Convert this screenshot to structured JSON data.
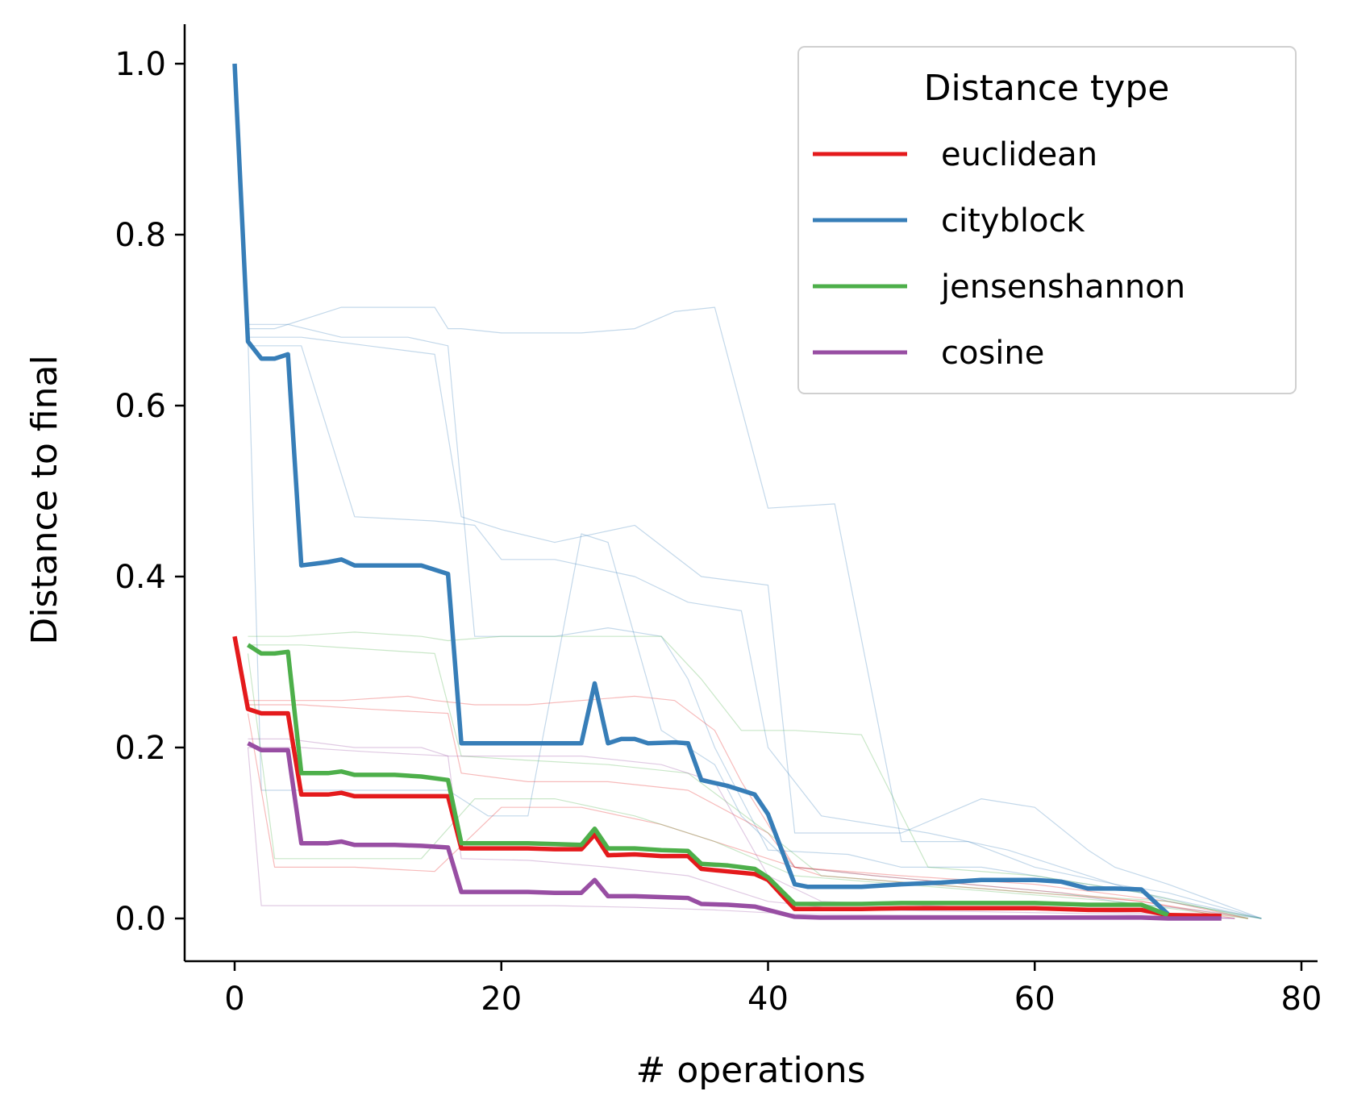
{
  "chart_data": {
    "type": "line",
    "title": "",
    "xlabel": "# operations",
    "ylabel": "Distance to final",
    "xlim": [
      -4,
      81
    ],
    "ylim": [
      -0.05,
      1.05
    ],
    "xticks": [
      0,
      20,
      40,
      60,
      80
    ],
    "yticks": [
      0.0,
      0.2,
      0.4,
      0.6,
      0.8,
      1.0
    ],
    "xtick_labels": [
      "0",
      "20",
      "40",
      "60",
      "80"
    ],
    "ytick_labels": [
      "0.0",
      "0.2",
      "0.4",
      "0.6",
      "0.8",
      "1.0"
    ],
    "grid": false,
    "legend": {
      "title": "Distance type",
      "placement": "top-right",
      "entries": [
        "euclidean",
        "cityblock",
        "jensenshannon",
        "cosine"
      ]
    },
    "colors": {
      "euclidean": "#e41a1c",
      "cityblock": "#377eb8",
      "jensenshannon": "#4daf4a",
      "cosine": "#984ea3"
    },
    "series": [
      {
        "name": "euclidean",
        "x": [
          0,
          1,
          2,
          3,
          4,
          5,
          6,
          7,
          8,
          9,
          10,
          12,
          14,
          16,
          17,
          18,
          20,
          22,
          24,
          26,
          27,
          28,
          30,
          32,
          34,
          35,
          37,
          39,
          40,
          42,
          44,
          47,
          50,
          55,
          60,
          64,
          68,
          70,
          74
        ],
        "y": [
          0.33,
          0.245,
          0.24,
          0.24,
          0.24,
          0.145,
          0.145,
          0.145,
          0.147,
          0.143,
          0.143,
          0.143,
          0.143,
          0.143,
          0.082,
          0.082,
          0.082,
          0.082,
          0.081,
          0.081,
          0.098,
          0.074,
          0.075,
          0.073,
          0.073,
          0.058,
          0.055,
          0.052,
          0.045,
          0.011,
          0.011,
          0.011,
          0.012,
          0.012,
          0.012,
          0.01,
          0.01,
          0.004,
          0.003
        ]
      },
      {
        "name": "cityblock",
        "x": [
          0,
          1,
          2,
          3,
          4,
          5,
          6,
          7,
          8,
          9,
          10,
          12,
          14,
          16,
          17,
          18,
          20,
          22,
          24,
          26,
          27,
          28,
          29,
          30,
          31,
          33,
          34,
          35,
          37,
          39,
          40,
          42,
          43,
          45,
          47,
          50,
          53,
          56,
          60,
          62,
          64,
          66,
          68,
          70
        ],
        "y": [
          1.0,
          0.675,
          0.655,
          0.655,
          0.66,
          0.413,
          0.415,
          0.417,
          0.42,
          0.413,
          0.413,
          0.413,
          0.413,
          0.403,
          0.205,
          0.205,
          0.205,
          0.205,
          0.205,
          0.205,
          0.275,
          0.205,
          0.21,
          0.21,
          0.205,
          0.206,
          0.205,
          0.162,
          0.155,
          0.145,
          0.122,
          0.04,
          0.037,
          0.037,
          0.037,
          0.04,
          0.042,
          0.045,
          0.045,
          0.043,
          0.035,
          0.035,
          0.034,
          0.005
        ]
      },
      {
        "name": "jensenshannon",
        "x": [
          1,
          2,
          3,
          4,
          5,
          6,
          7,
          8,
          9,
          10,
          12,
          14,
          16,
          17,
          18,
          20,
          22,
          24,
          26,
          27,
          28,
          30,
          32,
          34,
          35,
          37,
          39,
          40,
          42,
          44,
          47,
          50,
          55,
          60,
          64,
          68,
          70
        ],
        "y": [
          0.32,
          0.31,
          0.31,
          0.312,
          0.17,
          0.17,
          0.17,
          0.172,
          0.168,
          0.168,
          0.168,
          0.166,
          0.162,
          0.088,
          0.088,
          0.088,
          0.088,
          0.087,
          0.086,
          0.105,
          0.082,
          0.082,
          0.08,
          0.079,
          0.064,
          0.062,
          0.058,
          0.048,
          0.017,
          0.017,
          0.017,
          0.018,
          0.018,
          0.018,
          0.016,
          0.016,
          0.004
        ]
      },
      {
        "name": "cosine",
        "x": [
          1,
          2,
          3,
          4,
          5,
          6,
          7,
          8,
          9,
          10,
          12,
          14,
          16,
          17,
          18,
          20,
          22,
          24,
          26,
          27,
          28,
          30,
          32,
          34,
          35,
          37,
          39,
          40,
          42,
          44,
          50,
          55,
          60,
          64,
          68,
          70,
          74
        ],
        "y": [
          0.205,
          0.197,
          0.197,
          0.197,
          0.088,
          0.088,
          0.088,
          0.09,
          0.086,
          0.086,
          0.086,
          0.085,
          0.083,
          0.031,
          0.031,
          0.031,
          0.031,
          0.03,
          0.03,
          0.045,
          0.026,
          0.026,
          0.025,
          0.024,
          0.017,
          0.016,
          0.014,
          0.01,
          0.002,
          0.001,
          0.001,
          0.001,
          0.001,
          0.001,
          0.001,
          0.0,
          0.0
        ]
      }
    ],
    "background_series": [
      {
        "series": "cityblock",
        "x": [
          1,
          3,
          5,
          8,
          14,
          15,
          16,
          17,
          20,
          26,
          30,
          33,
          36,
          40,
          45,
          50,
          55,
          60,
          66,
          70,
          77
        ],
        "y": [
          0.69,
          0.69,
          0.7,
          0.715,
          0.715,
          0.715,
          0.69,
          0.69,
          0.685,
          0.685,
          0.69,
          0.71,
          0.715,
          0.48,
          0.485,
          0.09,
          0.09,
          0.06,
          0.04,
          0.03,
          0.0
        ]
      },
      {
        "series": "cityblock",
        "x": [
          1,
          5,
          10,
          15,
          17,
          18,
          20,
          24,
          30,
          35,
          40,
          42,
          50,
          56,
          60,
          64,
          66,
          70,
          77
        ],
        "y": [
          0.68,
          0.68,
          0.67,
          0.66,
          0.47,
          0.465,
          0.455,
          0.44,
          0.46,
          0.4,
          0.39,
          0.1,
          0.1,
          0.14,
          0.13,
          0.08,
          0.06,
          0.04,
          0.0
        ]
      },
      {
        "series": "cityblock",
        "x": [
          1,
          4,
          8,
          13,
          16,
          18,
          24,
          28,
          32,
          34,
          36,
          40,
          46,
          50,
          56,
          60,
          68,
          77
        ],
        "y": [
          0.695,
          0.695,
          0.68,
          0.68,
          0.67,
          0.33,
          0.33,
          0.34,
          0.33,
          0.28,
          0.2,
          0.08,
          0.075,
          0.06,
          0.06,
          0.05,
          0.03,
          0.0
        ]
      },
      {
        "series": "cityblock",
        "x": [
          1,
          5,
          9,
          15,
          18,
          20,
          24,
          30,
          34,
          38,
          40,
          44,
          52,
          58,
          62,
          66,
          70,
          77
        ],
        "y": [
          0.67,
          0.67,
          0.47,
          0.465,
          0.46,
          0.42,
          0.42,
          0.4,
          0.37,
          0.36,
          0.2,
          0.12,
          0.1,
          0.08,
          0.06,
          0.04,
          0.02,
          0.0
        ]
      },
      {
        "series": "cityblock",
        "x": [
          1,
          2,
          8,
          12,
          16,
          19,
          22,
          26,
          28,
          32,
          36,
          38,
          42,
          48,
          55,
          62,
          66,
          72,
          77
        ],
        "y": [
          0.68,
          0.15,
          0.15,
          0.15,
          0.15,
          0.12,
          0.12,
          0.45,
          0.44,
          0.22,
          0.18,
          0.12,
          0.06,
          0.05,
          0.04,
          0.03,
          0.02,
          0.01,
          0.0
        ]
      },
      {
        "series": "euclidean",
        "x": [
          1,
          4,
          8,
          13,
          15,
          18,
          22,
          26,
          30,
          33,
          36,
          38,
          42,
          48,
          55,
          62,
          68,
          75
        ],
        "y": [
          0.255,
          0.255,
          0.255,
          0.26,
          0.255,
          0.25,
          0.25,
          0.255,
          0.26,
          0.255,
          0.22,
          0.16,
          0.06,
          0.05,
          0.04,
          0.03,
          0.02,
          0.0
        ]
      },
      {
        "series": "euclidean",
        "x": [
          1,
          5,
          10,
          16,
          17,
          22,
          28,
          34,
          40,
          42,
          50,
          60,
          70,
          76
        ],
        "y": [
          0.25,
          0.25,
          0.245,
          0.24,
          0.17,
          0.16,
          0.16,
          0.15,
          0.1,
          0.06,
          0.05,
          0.04,
          0.02,
          0.0
        ]
      },
      {
        "series": "euclidean",
        "x": [
          1,
          3,
          9,
          15,
          20,
          26,
          32,
          38,
          44,
          52,
          60,
          68,
          76
        ],
        "y": [
          0.24,
          0.06,
          0.06,
          0.055,
          0.13,
          0.13,
          0.11,
          0.08,
          0.05,
          0.04,
          0.03,
          0.02,
          0.0
        ]
      },
      {
        "series": "jensenshannon",
        "x": [
          1,
          4,
          9,
          14,
          16,
          20,
          26,
          32,
          35,
          38,
          42,
          47,
          52,
          60,
          68,
          76
        ],
        "y": [
          0.33,
          0.33,
          0.335,
          0.33,
          0.325,
          0.33,
          0.33,
          0.33,
          0.28,
          0.22,
          0.22,
          0.215,
          0.06,
          0.05,
          0.03,
          0.0
        ]
      },
      {
        "series": "jensenshannon",
        "x": [
          1,
          5,
          10,
          15,
          17,
          22,
          28,
          34,
          40,
          44,
          52,
          60,
          70,
          77
        ],
        "y": [
          0.32,
          0.32,
          0.315,
          0.31,
          0.19,
          0.185,
          0.18,
          0.17,
          0.1,
          0.05,
          0.04,
          0.03,
          0.02,
          0.0
        ]
      },
      {
        "series": "jensenshannon",
        "x": [
          1,
          3,
          8,
          14,
          18,
          24,
          30,
          36,
          42,
          50,
          58,
          66,
          76
        ],
        "y": [
          0.31,
          0.07,
          0.07,
          0.07,
          0.14,
          0.14,
          0.12,
          0.09,
          0.05,
          0.04,
          0.03,
          0.02,
          0.0
        ]
      },
      {
        "series": "cosine",
        "x": [
          1,
          4,
          9,
          14,
          16,
          20,
          26,
          32,
          36,
          40,
          44,
          52,
          60,
          70,
          75
        ],
        "y": [
          0.21,
          0.21,
          0.2,
          0.2,
          0.19,
          0.19,
          0.19,
          0.18,
          0.16,
          0.05,
          0.02,
          0.015,
          0.01,
          0.005,
          0.0
        ]
      },
      {
        "series": "cosine",
        "x": [
          1,
          2,
          6,
          12,
          16,
          18,
          24,
          30,
          36,
          42,
          50,
          60,
          70,
          75
        ],
        "y": [
          0.2,
          0.015,
          0.015,
          0.015,
          0.015,
          0.015,
          0.015,
          0.013,
          0.01,
          0.005,
          0.004,
          0.003,
          0.002,
          0.0
        ]
      },
      {
        "series": "cosine",
        "x": [
          1,
          5,
          10,
          16,
          17,
          22,
          28,
          34,
          40,
          46,
          56,
          66,
          75
        ],
        "y": [
          0.2,
          0.2,
          0.195,
          0.19,
          0.07,
          0.068,
          0.06,
          0.05,
          0.02,
          0.01,
          0.008,
          0.005,
          0.0
        ]
      }
    ]
  }
}
